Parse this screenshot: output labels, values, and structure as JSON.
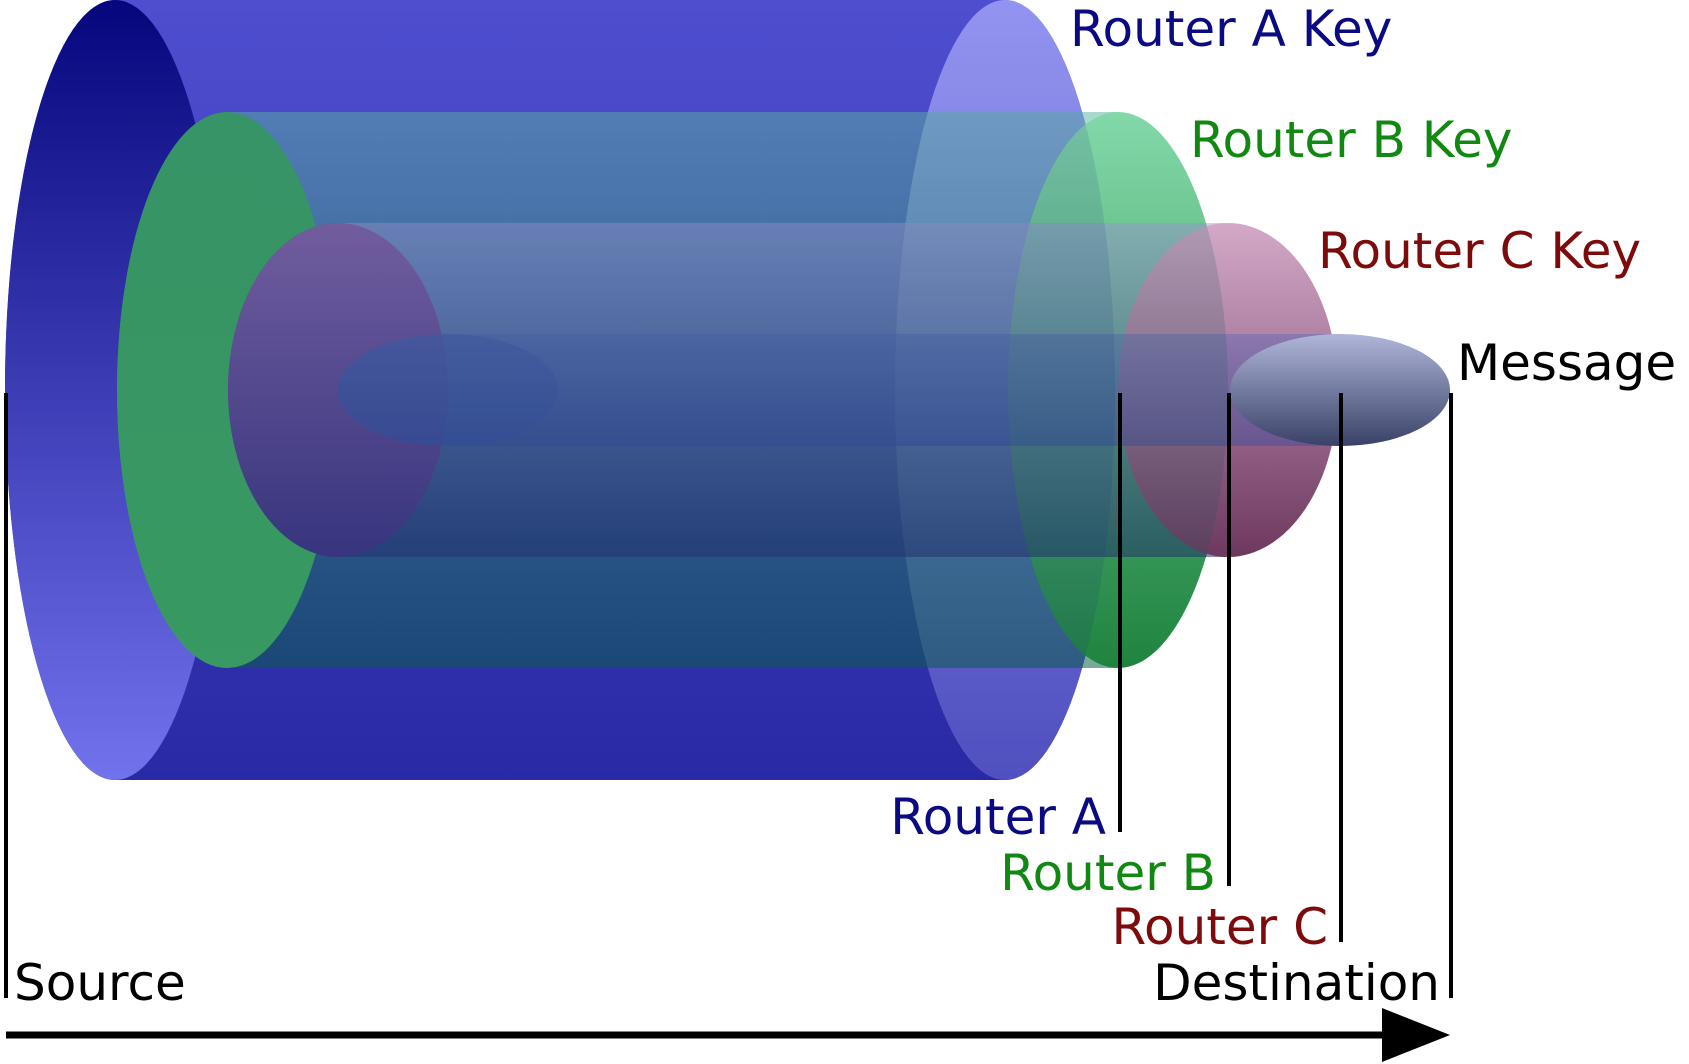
{
  "layers": {
    "router_a_key": {
      "label": "Router A Key",
      "color": "#0a0a82"
    },
    "router_b_key": {
      "label": "Router B Key",
      "color": "#118811"
    },
    "router_c_key": {
      "label": "Router C Key",
      "color": "#7d0b0b"
    },
    "message": {
      "label": "Message",
      "color": "#000000"
    }
  },
  "hops": {
    "router_a": {
      "label": "Router A",
      "color": "#0a0a82"
    },
    "router_b": {
      "label": "Router B",
      "color": "#118811"
    },
    "router_c": {
      "label": "Router C",
      "color": "#7d0b0b"
    }
  },
  "endpoints": {
    "source": "Source",
    "destination": "Destination"
  }
}
